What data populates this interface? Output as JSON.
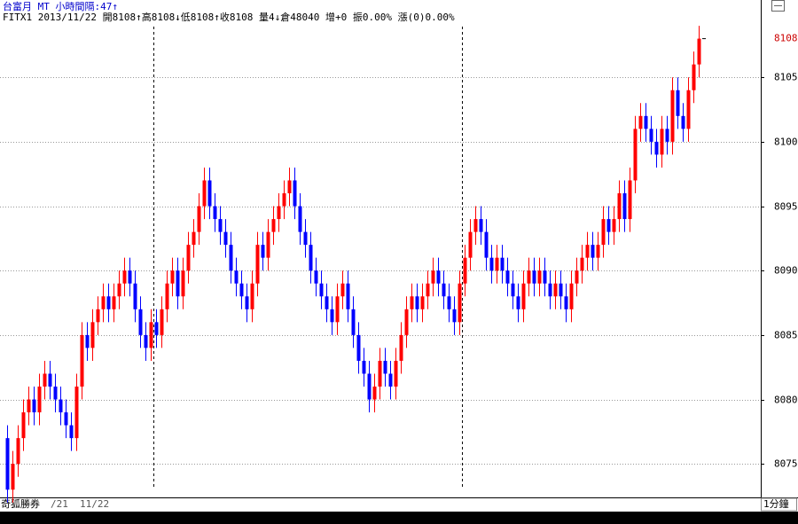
{
  "chart_data": {
    "type": "candlestick",
    "header": "台富月 MT 小時間隔:47↑",
    "quote": "FITX1 2013/11/22 開8108↑高8108↓低8108↑收8108 量4↓倉48040 增+0 振0.00% 漲(0)0.00%",
    "footer": {
      "brand": "奇狐勝券",
      "dates": [
        "/21",
        "11/22"
      ],
      "period": "1分鐘"
    },
    "up_color": "#ff0000",
    "down_color": "#0000ff",
    "session_breaks": [
      28,
      86
    ],
    "ylim": [
      8072.4,
      8111
    ],
    "yticks": [
      8075,
      8080,
      8085,
      8090,
      8095,
      8100,
      8105
    ],
    "grid": true,
    "open": [
      8077,
      8073,
      8075,
      8077,
      8079,
      8080,
      8079,
      8081,
      8082,
      8081,
      8080,
      8079,
      8078,
      8077,
      8081,
      8085,
      8084,
      8086,
      8087,
      8088,
      8087,
      8088,
      8089,
      8090,
      8089,
      8087,
      8085,
      8084,
      8086,
      8085,
      8087,
      8089,
      8090,
      8088,
      8090,
      8092,
      8093,
      8095,
      8097,
      8095,
      8094,
      8093,
      8092,
      8090,
      8089,
      8088,
      8087,
      8089,
      8092,
      8091,
      8093,
      8094,
      8095,
      8096,
      8097,
      8095,
      8093,
      8092,
      8090,
      8089,
      8088,
      8087,
      8086,
      8088,
      8089,
      8087,
      8085,
      8083,
      8082,
      8080,
      8081,
      8083,
      8082,
      8081,
      8083,
      8085,
      8087,
      8088,
      8087,
      8088,
      8089,
      8090,
      8089,
      8088,
      8087,
      8086,
      8089,
      8091,
      8093,
      8094,
      8093,
      8091,
      8090,
      8091,
      8090,
      8089,
      8088,
      8087,
      8089,
      8090,
      8089,
      8090,
      8089,
      8088,
      8089,
      8088,
      8087,
      8089,
      8090,
      8091,
      8092,
      8091,
      8092,
      8094,
      8093,
      8094,
      8096,
      8094,
      8097,
      8101,
      8102,
      8101,
      8100,
      8099,
      8101,
      8100,
      8104,
      8102,
      8101,
      8104,
      8106
    ],
    "high": [
      8078,
      8076,
      8078,
      8080,
      8081,
      8081,
      8082,
      8083,
      8083,
      8082,
      8081,
      8080,
      8079,
      8082,
      8086,
      8086,
      8087,
      8088,
      8089,
      8089,
      8089,
      8090,
      8091,
      8091,
      8090,
      8088,
      8086,
      8087,
      8087,
      8088,
      8090,
      8091,
      8091,
      8091,
      8093,
      8094,
      8096,
      8098,
      8098,
      8096,
      8095,
      8094,
      8093,
      8091,
      8090,
      8089,
      8090,
      8093,
      8093,
      8094,
      8095,
      8096,
      8097,
      8098,
      8098,
      8096,
      8094,
      8093,
      8091,
      8090,
      8089,
      8088,
      8089,
      8090,
      8090,
      8088,
      8086,
      8084,
      8083,
      8082,
      8084,
      8084,
      8083,
      8084,
      8086,
      8088,
      8089,
      8089,
      8089,
      8090,
      8091,
      8091,
      8090,
      8089,
      8088,
      8090,
      8092,
      8094,
      8095,
      8095,
      8094,
      8092,
      8092,
      8092,
      8091,
      8090,
      8089,
      8090,
      8091,
      8091,
      8091,
      8091,
      8090,
      8090,
      8090,
      8089,
      8090,
      8091,
      8092,
      8093,
      8093,
      8093,
      8095,
      8095,
      8095,
      8097,
      8097,
      8098,
      8102,
      8103,
      8103,
      8102,
      8101,
      8102,
      8102,
      8105,
      8105,
      8103,
      8105,
      8107,
      8109
    ],
    "low": [
      8072,
      8072,
      8074,
      8076,
      8078,
      8078,
      8078,
      8080,
      8080,
      8079,
      8078,
      8077,
      8076,
      8076,
      8080,
      8083,
      8083,
      8085,
      8086,
      8086,
      8086,
      8087,
      8088,
      8088,
      8086,
      8084,
      8083,
      8083,
      8084,
      8084,
      8086,
      8088,
      8087,
      8087,
      8089,
      8091,
      8092,
      8094,
      8094,
      8093,
      8092,
      8091,
      8089,
      8088,
      8087,
      8086,
      8086,
      8088,
      8090,
      8090,
      8092,
      8093,
      8094,
      8095,
      8094,
      8092,
      8091,
      8089,
      8088,
      8087,
      8086,
      8085,
      8085,
      8087,
      8086,
      8084,
      8082,
      8081,
      8079,
      8079,
      8080,
      8081,
      8080,
      8080,
      8082,
      8084,
      8086,
      8086,
      8086,
      8087,
      8088,
      8088,
      8087,
      8086,
      8085,
      8085,
      8088,
      8090,
      8092,
      8092,
      8090,
      8089,
      8089,
      8089,
      8088,
      8087,
      8086,
      8086,
      8088,
      8088,
      8088,
      8088,
      8087,
      8087,
      8087,
      8086,
      8086,
      8088,
      8089,
      8090,
      8090,
      8090,
      8091,
      8092,
      8092,
      8093,
      8093,
      8093,
      8096,
      8100,
      8100,
      8099,
      8098,
      8098,
      8099,
      8099,
      8101,
      8100,
      8100,
      8103,
      8105
    ],
    "close": [
      8073,
      8075,
      8077,
      8079,
      8080,
      8079,
      8081,
      8082,
      8081,
      8080,
      8079,
      8078,
      8077,
      8081,
      8085,
      8084,
      8086,
      8087,
      8088,
      8087,
      8088,
      8089,
      8090,
      8089,
      8087,
      8085,
      8084,
      8086,
      8085,
      8087,
      8089,
      8090,
      8088,
      8090,
      8092,
      8093,
      8095,
      8097,
      8095,
      8094,
      8093,
      8092,
      8090,
      8089,
      8088,
      8087,
      8089,
      8092,
      8091,
      8093,
      8094,
      8095,
      8096,
      8097,
      8095,
      8093,
      8092,
      8090,
      8089,
      8088,
      8087,
      8086,
      8088,
      8089,
      8087,
      8085,
      8083,
      8082,
      8080,
      8081,
      8083,
      8082,
      8081,
      8083,
      8085,
      8087,
      8088,
      8087,
      8088,
      8089,
      8090,
      8089,
      8088,
      8087,
      8086,
      8089,
      8091,
      8093,
      8094,
      8093,
      8091,
      8090,
      8091,
      8090,
      8089,
      8088,
      8087,
      8089,
      8090,
      8089,
      8090,
      8089,
      8088,
      8089,
      8088,
      8087,
      8089,
      8090,
      8091,
      8092,
      8091,
      8092,
      8094,
      8093,
      8094,
      8096,
      8094,
      8097,
      8101,
      8102,
      8101,
      8100,
      8099,
      8101,
      8100,
      8104,
      8102,
      8101,
      8104,
      8106,
      8108
    ]
  }
}
